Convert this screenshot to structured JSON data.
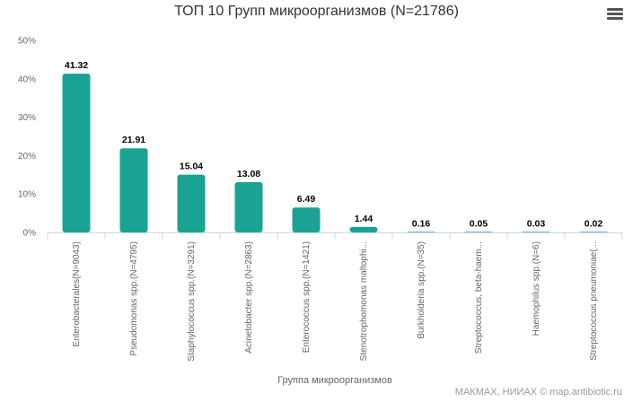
{
  "chart": {
    "title": "ТОП 10 Групп микроорганизмов (N=21786)",
    "credits": "МАКМАХ, НИИАХ © map.antibiotic.ru",
    "menu_icon": "hamburger-menu-icon"
  },
  "chart_data": {
    "type": "bar",
    "title": "ТОП 10 Групп микроорганизмов (N=21786)",
    "xlabel": "Группа микроорганизмов",
    "ylabel": "",
    "ylim": [
      0,
      50
    ],
    "yticks": [
      "0%",
      "10%",
      "20%",
      "30%",
      "40%",
      "50%"
    ],
    "grid": false,
    "legend": "none",
    "bar_color": "#1aa393",
    "categories": [
      "Enterobacterales(N=9043)",
      "Pseudomonas spp.(N=4795)",
      "Staphylococcus spp.(N=3291)",
      "Acinetobacter spp.(N=2863)",
      "Enterococcus spp.(N=1421)",
      "Stenotrophomonas maltophi...",
      "Burkholderia spp.(N=35)",
      "Streptococcus, beta-haem...",
      "Haemophilus spp.(N=6)",
      "Streptococcus pneumoniae(..."
    ],
    "values": [
      41.32,
      21.91,
      15.04,
      13.08,
      6.49,
      1.44,
      0.16,
      0.05,
      0.03,
      0.02
    ],
    "data_labels": [
      "41.32",
      "21.91",
      "15.04",
      "13.08",
      "6.49",
      "1.44",
      "0.16",
      "0.05",
      "0.03",
      "0.02"
    ]
  }
}
